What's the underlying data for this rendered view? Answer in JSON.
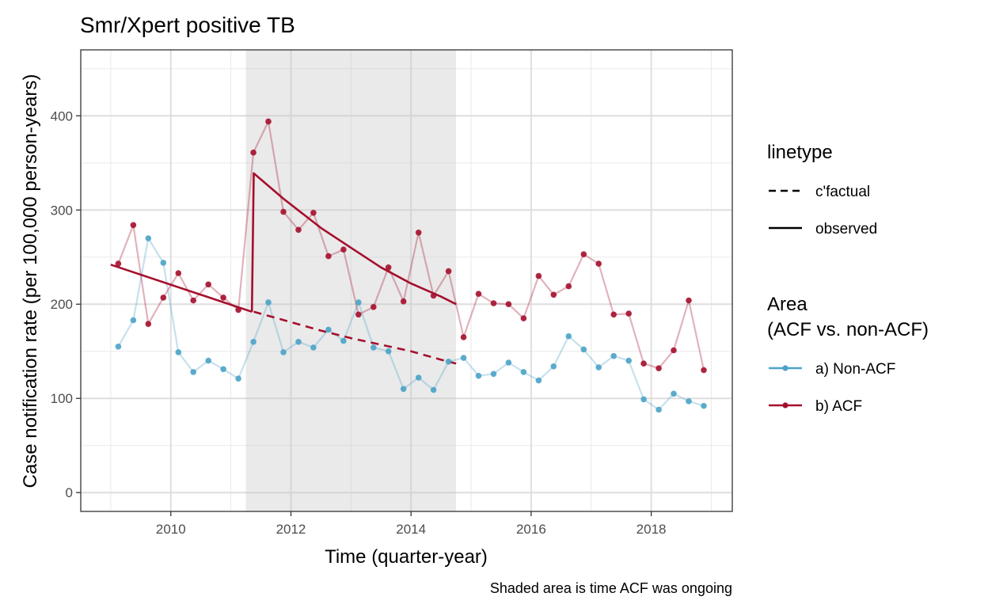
{
  "chart_data": {
    "type": "line",
    "title": "Smr/Xpert positive TB",
    "xlabel": "Time (quarter-year)",
    "ylabel": "Case notification rate (per 100,000 person-years)",
    "caption": "Shaded area is time ACF was ongoing",
    "xlim": [
      2008.5,
      2019.35
    ],
    "ylim": [
      -20,
      470
    ],
    "x_ticks": [
      2010,
      2012,
      2014,
      2016,
      2018
    ],
    "y_ticks": [
      0,
      100,
      200,
      300,
      400
    ],
    "grid": true,
    "shaded_region": [
      2011.25,
      2014.75
    ],
    "legend_position": "right",
    "legend_linetype": {
      "title": "linetype",
      "entries": [
        {
          "label": "c'factual",
          "style": "dashed"
        },
        {
          "label": "observed",
          "style": "solid"
        }
      ]
    },
    "legend_area": {
      "title_line1": "Area",
      "title_line2": "(ACF vs. non-ACF)",
      "entries": [
        {
          "label": "a) Non-ACF",
          "color": "#4ba3c7"
        },
        {
          "label": "b) ACF",
          "color": "#a50f2d"
        }
      ]
    },
    "x": [
      2009.125,
      2009.375,
      2009.625,
      2009.875,
      2010.125,
      2010.375,
      2010.625,
      2010.875,
      2011.125,
      2011.375,
      2011.625,
      2011.875,
      2012.125,
      2012.375,
      2012.625,
      2012.875,
      2013.125,
      2013.375,
      2013.625,
      2013.875,
      2014.125,
      2014.375,
      2014.625,
      2014.875,
      2015.125,
      2015.375,
      2015.625,
      2015.875,
      2016.125,
      2016.375,
      2016.625,
      2016.875,
      2017.125,
      2017.375,
      2017.625,
      2017.875,
      2018.125,
      2018.375,
      2018.625,
      2018.875
    ],
    "series": [
      {
        "name": "a) Non-ACF",
        "color": "#4ba3c7",
        "values": [
          155,
          183,
          270,
          244,
          149,
          128,
          140,
          131,
          121,
          160,
          202,
          149,
          160,
          154,
          173,
          161,
          202,
          154,
          150,
          110,
          122,
          109,
          139,
          143,
          124,
          126,
          138,
          128,
          119,
          134,
          166,
          152,
          133,
          145,
          140,
          99,
          88,
          105,
          97,
          92
        ]
      },
      {
        "name": "b) ACF",
        "color": "#a50f2d",
        "values": [
          243,
          284,
          179,
          207,
          233,
          204,
          221,
          207,
          194,
          361,
          394,
          298,
          279,
          297,
          251,
          258,
          189,
          197,
          239,
          203,
          276,
          209,
          235,
          165,
          211,
          201,
          200,
          185,
          230,
          210,
          219,
          253,
          243,
          189,
          190,
          137,
          132,
          151,
          204,
          130
        ]
      }
    ],
    "fit_lines": [
      {
        "segment": "pre-ACF observed",
        "style": "solid",
        "color": "#a50f2d",
        "x": [
          2009.0,
          2011.35
        ],
        "y": [
          242,
          192
        ]
      },
      {
        "segment": "ACF observed",
        "style": "solid",
        "color": "#a50f2d",
        "x": [
          2011.35,
          2011.38,
          2011.875,
          2012.5,
          2013.0,
          2013.5,
          2014.0,
          2014.5,
          2014.75
        ],
        "y": [
          192,
          339,
          312,
          281,
          260,
          239,
          222,
          208,
          200
        ]
      },
      {
        "segment": "counterfactual",
        "style": "dashed",
        "color": "#a50f2d",
        "x": [
          2011.38,
          2012.0,
          2012.5,
          2013.0,
          2013.5,
          2014.0,
          2014.5,
          2014.75
        ],
        "y": [
          192,
          181,
          172,
          164,
          157,
          150,
          141,
          137
        ]
      }
    ]
  }
}
